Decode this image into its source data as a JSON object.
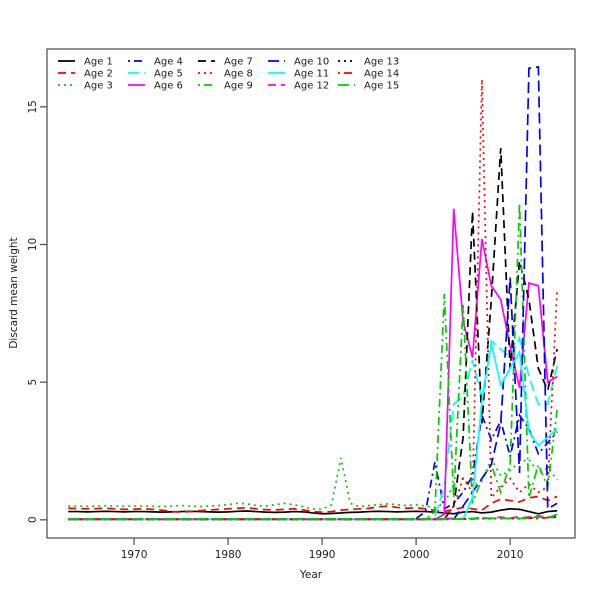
{
  "chart_data": {
    "type": "line",
    "title": "",
    "xlabel": "Year",
    "ylabel": "Discard mean weight",
    "x_start_year": 1963,
    "x_end_year": 2015,
    "x_ticks": [
      1970,
      1980,
      1990,
      2000,
      2010
    ],
    "y_ticks": [
      0,
      5,
      10,
      15
    ],
    "xlim": [
      1960.74,
      2016.9
    ],
    "ylim": [
      -0.66,
      17.1
    ],
    "grid": false,
    "legend_position": "top-left-inside",
    "legend_columns": 5,
    "legend_rows": 3,
    "frame_color": "#4a4a4a",
    "text_color": "#1c1c1c",
    "series": [
      {
        "name": "Age 1",
        "color": "#000000",
        "linestyle": "solid",
        "values": [
          0.3,
          0.3,
          0.29,
          0.3,
          0.31,
          0.3,
          0.29,
          0.3,
          0.3,
          0.29,
          0.28,
          0.29,
          0.3,
          0.31,
          0.3,
          0.29,
          0.28,
          0.29,
          0.31,
          0.32,
          0.3,
          0.28,
          0.27,
          0.28,
          0.3,
          0.29,
          0.25,
          0.22,
          0.23,
          0.25,
          0.27,
          0.28,
          0.3,
          0.31,
          0.3,
          0.29,
          0.3,
          0.31,
          0.3,
          0.28,
          0.25,
          0.22,
          0.28,
          0.3,
          0.25,
          0.28,
          0.35,
          0.4,
          0.38,
          0.3,
          0.22,
          0.3,
          0.33
        ]
      },
      {
        "name": "Age 2",
        "color": "#ff0000",
        "linestyle": "dashed",
        "values": [
          0.42,
          0.41,
          0.4,
          0.41,
          0.42,
          0.4,
          0.38,
          0.39,
          0.4,
          0.38,
          0.35,
          0.3,
          0.28,
          0.3,
          0.33,
          0.36,
          0.38,
          0.4,
          0.42,
          0.44,
          0.4,
          0.37,
          0.36,
          0.38,
          0.4,
          0.36,
          0.3,
          0.28,
          0.3,
          0.35,
          0.38,
          0.4,
          0.42,
          0.47,
          0.5,
          0.45,
          0.42,
          0.44,
          0.4,
          0.35,
          0.3,
          0.38,
          0.45,
          0.4,
          0.35,
          0.6,
          0.75,
          0.7,
          0.65,
          0.8,
          0.85,
          0.7,
          0.85
        ]
      },
      {
        "name": "Age 3",
        "color": "#00cd00",
        "linestyle": "dotted",
        "values": [
          0.5,
          0.5,
          0.49,
          0.5,
          0.51,
          0.5,
          0.5,
          0.5,
          0.5,
          0.49,
          0.48,
          0.5,
          0.52,
          0.5,
          0.48,
          0.5,
          0.52,
          0.55,
          0.6,
          0.58,
          0.52,
          0.5,
          0.55,
          0.6,
          0.55,
          0.48,
          0.4,
          0.38,
          0.55,
          2.25,
          0.6,
          0.48,
          0.52,
          0.55,
          0.58,
          0.55,
          0.52,
          0.55,
          0.5,
          0.45,
          0.6,
          1.3,
          1.5,
          1.2,
          1.4,
          2.2,
          1.6,
          1.8,
          2.1,
          2.2,
          1.7,
          1.9,
          1.45
        ]
      },
      {
        "name": "Age 4",
        "color": "#0000ff",
        "linestyle": "dashdot",
        "values": [
          0.02,
          0.02,
          0.02,
          0.02,
          0.02,
          0.02,
          0.02,
          0.02,
          0.02,
          0.02,
          0.02,
          0.02,
          0.02,
          0.02,
          0.02,
          0.02,
          0.02,
          0.02,
          0.02,
          0.02,
          0.02,
          0.02,
          0.02,
          0.02,
          0.02,
          0.02,
          0.02,
          0.02,
          0.02,
          0.02,
          0.02,
          0.02,
          0.02,
          0.02,
          0.02,
          0.02,
          0.02,
          0.05,
          0.3,
          2.1,
          0.4,
          0.6,
          1.0,
          1.6,
          3.8,
          2.9,
          3.6,
          2.3,
          3.8,
          3.3,
          2.4,
          2.8,
          3.2
        ]
      },
      {
        "name": "Age 5",
        "color": "#00ffff",
        "linestyle": "longdash",
        "values": [
          0.02,
          0.02,
          0.02,
          0.02,
          0.02,
          0.02,
          0.02,
          0.02,
          0.02,
          0.02,
          0.02,
          0.02,
          0.02,
          0.02,
          0.02,
          0.02,
          0.02,
          0.02,
          0.02,
          0.02,
          0.02,
          0.02,
          0.02,
          0.02,
          0.02,
          0.02,
          0.02,
          0.02,
          0.02,
          0.02,
          0.02,
          0.02,
          0.02,
          0.02,
          0.02,
          0.02,
          0.02,
          0.02,
          0.02,
          0.1,
          1.2,
          4.2,
          4.5,
          5.8,
          4.4,
          6.5,
          6.2,
          5.9,
          6.6,
          5.2,
          4.2,
          4.2,
          5.6
        ]
      },
      {
        "name": "Age 6",
        "color": "#ff00ff",
        "linestyle": "solid",
        "values": [
          0.02,
          0.02,
          0.02,
          0.02,
          0.02,
          0.02,
          0.02,
          0.02,
          0.02,
          0.02,
          0.02,
          0.02,
          0.02,
          0.02,
          0.02,
          0.02,
          0.02,
          0.02,
          0.02,
          0.02,
          0.02,
          0.02,
          0.02,
          0.02,
          0.02,
          0.02,
          0.02,
          0.02,
          0.02,
          0.02,
          0.02,
          0.02,
          0.02,
          0.02,
          0.02,
          0.02,
          0.02,
          0.02,
          0.02,
          0.02,
          0.2,
          11.3,
          7.2,
          5.9,
          10.2,
          8.5,
          8.0,
          6.3,
          4.8,
          8.6,
          8.5,
          5.0,
          5.2
        ]
      },
      {
        "name": "Age 7",
        "color": "#000000",
        "linestyle": "dashed",
        "values": [
          0.02,
          0.02,
          0.02,
          0.02,
          0.02,
          0.02,
          0.02,
          0.02,
          0.02,
          0.02,
          0.02,
          0.02,
          0.02,
          0.02,
          0.02,
          0.02,
          0.02,
          0.02,
          0.02,
          0.02,
          0.02,
          0.02,
          0.02,
          0.02,
          0.02,
          0.02,
          0.02,
          0.02,
          0.02,
          0.02,
          0.02,
          0.02,
          0.02,
          0.02,
          0.02,
          0.02,
          0.02,
          0.02,
          0.02,
          0.02,
          0.02,
          0.5,
          3.0,
          11.2,
          3.5,
          8.0,
          13.5,
          5.5,
          9.4,
          8.0,
          5.5,
          4.7,
          6.2
        ]
      },
      {
        "name": "Age 8",
        "color": "#ff0000",
        "linestyle": "dotted",
        "values": [
          0.02,
          0.02,
          0.02,
          0.02,
          0.02,
          0.02,
          0.02,
          0.02,
          0.02,
          0.02,
          0.02,
          0.02,
          0.02,
          0.02,
          0.02,
          0.02,
          0.02,
          0.02,
          0.02,
          0.02,
          0.02,
          0.02,
          0.02,
          0.02,
          0.02,
          0.02,
          0.02,
          0.02,
          0.02,
          0.02,
          0.02,
          0.02,
          0.02,
          0.02,
          0.02,
          0.02,
          0.02,
          0.02,
          0.02,
          0.02,
          0.02,
          0.5,
          1.5,
          1.0,
          16.0,
          0.8,
          1.2,
          1.5,
          1.0,
          1.3,
          1.0,
          1.2,
          8.4
        ]
      },
      {
        "name": "Age 9",
        "color": "#00cd00",
        "linestyle": "dashdot",
        "values": [
          0.02,
          0.02,
          0.02,
          0.02,
          0.02,
          0.02,
          0.02,
          0.02,
          0.02,
          0.02,
          0.02,
          0.02,
          0.02,
          0.02,
          0.02,
          0.02,
          0.02,
          0.02,
          0.02,
          0.02,
          0.02,
          0.02,
          0.02,
          0.02,
          0.02,
          0.02,
          0.02,
          0.02,
          0.02,
          0.02,
          0.02,
          0.02,
          0.02,
          0.02,
          0.02,
          0.02,
          0.02,
          0.02,
          0.02,
          0.3,
          8.2,
          0.8,
          7.8,
          0.6,
          1.5,
          2.0,
          1.0,
          2.0,
          11.5,
          0.8,
          2.0,
          1.2,
          4.0
        ]
      },
      {
        "name": "Age 10",
        "color": "#0000ff",
        "linestyle": "longdash",
        "values": [
          0.02,
          0.02,
          0.02,
          0.02,
          0.02,
          0.02,
          0.02,
          0.02,
          0.02,
          0.02,
          0.02,
          0.02,
          0.02,
          0.02,
          0.02,
          0.02,
          0.02,
          0.02,
          0.02,
          0.02,
          0.02,
          0.02,
          0.02,
          0.02,
          0.02,
          0.02,
          0.02,
          0.02,
          0.02,
          0.02,
          0.02,
          0.02,
          0.02,
          0.02,
          0.02,
          0.02,
          0.02,
          0.02,
          0.02,
          0.02,
          0.02,
          0.02,
          0.5,
          1.0,
          1.5,
          2.0,
          3.5,
          8.8,
          1.7,
          16.4,
          16.45,
          0.4,
          0.6
        ]
      },
      {
        "name": "Age 11",
        "color": "#00ffff",
        "linestyle": "solid",
        "values": [
          0.02,
          0.02,
          0.02,
          0.02,
          0.02,
          0.02,
          0.02,
          0.02,
          0.02,
          0.02,
          0.02,
          0.02,
          0.02,
          0.02,
          0.02,
          0.02,
          0.02,
          0.02,
          0.02,
          0.02,
          0.02,
          0.02,
          0.02,
          0.02,
          0.02,
          0.02,
          0.02,
          0.02,
          0.02,
          0.02,
          0.02,
          0.02,
          0.02,
          0.02,
          0.02,
          0.02,
          0.02,
          0.02,
          0.02,
          0.02,
          0.02,
          0.02,
          0.02,
          0.8,
          4.3,
          6.4,
          4.9,
          5.5,
          6.1,
          3.2,
          2.7,
          3.0,
          3.3
        ]
      },
      {
        "name": "Age 12",
        "color": "#ff00ff",
        "linestyle": "dashed",
        "values": [
          0.02,
          0.02,
          0.02,
          0.02,
          0.02,
          0.02,
          0.02,
          0.02,
          0.02,
          0.02,
          0.02,
          0.02,
          0.02,
          0.02,
          0.02,
          0.02,
          0.02,
          0.02,
          0.02,
          0.02,
          0.02,
          0.02,
          0.02,
          0.02,
          0.02,
          0.02,
          0.02,
          0.02,
          0.02,
          0.02,
          0.02,
          0.02,
          0.02,
          0.02,
          0.02,
          0.02,
          0.02,
          0.02,
          0.02,
          0.02,
          0.05,
          0.05,
          0.03,
          0.05,
          0.08,
          0.05,
          0.1,
          0.06,
          0.12,
          0.05,
          0.15,
          0.08,
          0.1
        ]
      },
      {
        "name": "Age 13",
        "color": "#000000",
        "linestyle": "dotted",
        "values": [
          0.02,
          0.02,
          0.02,
          0.02,
          0.02,
          0.02,
          0.02,
          0.02,
          0.02,
          0.02,
          0.02,
          0.02,
          0.02,
          0.02,
          0.02,
          0.02,
          0.02,
          0.02,
          0.02,
          0.02,
          0.02,
          0.02,
          0.02,
          0.02,
          0.02,
          0.02,
          0.02,
          0.02,
          0.02,
          0.02,
          0.02,
          0.02,
          0.02,
          0.02,
          0.02,
          0.02,
          0.02,
          0.02,
          0.02,
          0.02,
          0.02,
          0.03,
          0.03,
          0.04,
          0.05,
          0.04,
          0.06,
          0.05,
          0.04,
          0.06,
          0.05,
          0.1,
          0.1
        ]
      },
      {
        "name": "Age 14",
        "color": "#ff0000",
        "linestyle": "dashdot",
        "values": [
          0.02,
          0.02,
          0.02,
          0.02,
          0.02,
          0.02,
          0.02,
          0.02,
          0.02,
          0.02,
          0.02,
          0.02,
          0.02,
          0.02,
          0.02,
          0.02,
          0.02,
          0.02,
          0.02,
          0.02,
          0.02,
          0.02,
          0.02,
          0.02,
          0.02,
          0.02,
          0.02,
          0.02,
          0.02,
          0.02,
          0.02,
          0.02,
          0.02,
          0.02,
          0.02,
          0.02,
          0.02,
          0.02,
          0.02,
          0.02,
          0.02,
          0.03,
          0.04,
          0.03,
          0.05,
          0.06,
          0.04,
          0.05,
          0.06,
          0.1,
          0.05,
          0.08,
          0.15
        ]
      },
      {
        "name": "Age 15",
        "color": "#00cd00",
        "linestyle": "longdash",
        "values": [
          0.03,
          0.03,
          0.03,
          0.03,
          0.03,
          0.03,
          0.03,
          0.03,
          0.03,
          0.03,
          0.03,
          0.03,
          0.03,
          0.03,
          0.03,
          0.03,
          0.03,
          0.03,
          0.03,
          0.03,
          0.03,
          0.03,
          0.03,
          0.03,
          0.03,
          0.03,
          0.03,
          0.03,
          0.03,
          0.03,
          0.03,
          0.03,
          0.03,
          0.03,
          0.03,
          0.03,
          0.03,
          0.03,
          0.03,
          0.03,
          0.03,
          0.04,
          0.03,
          0.05,
          0.04,
          0.06,
          0.05,
          0.06,
          0.05,
          0.07,
          0.1,
          0.07,
          0.2
        ]
      }
    ]
  }
}
